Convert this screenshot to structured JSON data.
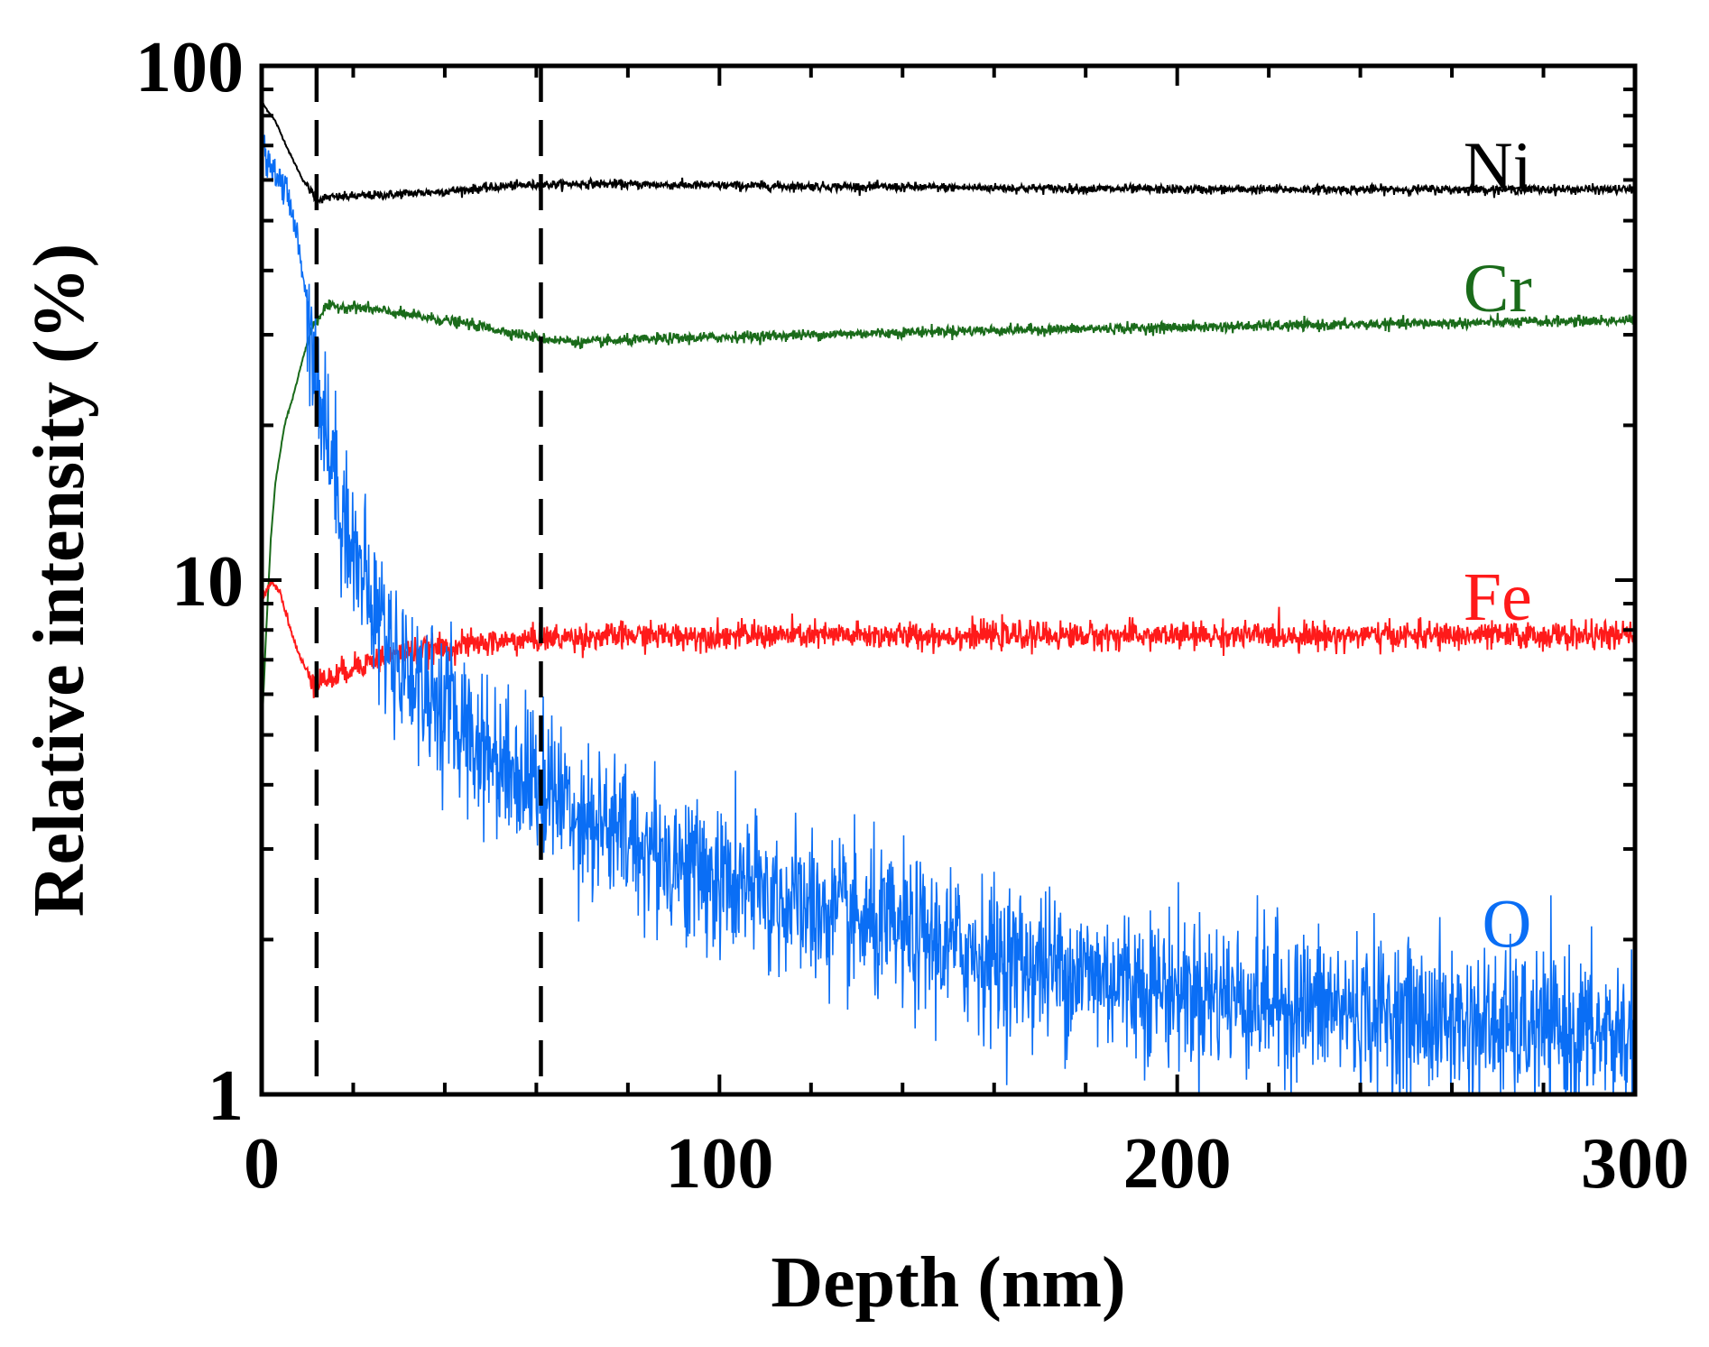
{
  "chart_data": {
    "type": "line",
    "xlabel": "Depth (nm)",
    "ylabel": "Relative intensity (%)",
    "xlim": [
      0,
      300
    ],
    "ylim": [
      1,
      100
    ],
    "yscale": "log",
    "x_ticks": [
      0,
      100,
      200,
      300
    ],
    "x_tick_labels": [
      "0",
      "100",
      "200",
      "300"
    ],
    "x_minor_step": 20,
    "y_ticks": [
      1,
      10,
      100
    ],
    "y_tick_labels": [
      "1",
      "10",
      "100"
    ],
    "vlines": [
      12,
      61
    ],
    "vline_style": "dashed",
    "series": [
      {
        "name": "Ni",
        "color": "#000000",
        "noise": 0.01,
        "points": [
          [
            0,
            85
          ],
          [
            3,
            78
          ],
          [
            6,
            68
          ],
          [
            9,
            60
          ],
          [
            12,
            55
          ],
          [
            15,
            55.5
          ],
          [
            25,
            56
          ],
          [
            40,
            57
          ],
          [
            55,
            58.5
          ],
          [
            70,
            59
          ],
          [
            100,
            58.5
          ],
          [
            150,
            58
          ],
          [
            200,
            57.5
          ],
          [
            250,
            57.5
          ],
          [
            300,
            57.5
          ]
        ]
      },
      {
        "name": "Cr",
        "color": "#1a6b1a",
        "noise": 0.012,
        "points": [
          [
            0,
            5
          ],
          [
            1,
            8
          ],
          [
            2,
            12
          ],
          [
            3,
            15.5
          ],
          [
            5,
            20
          ],
          [
            7,
            23
          ],
          [
            9,
            27
          ],
          [
            11,
            31
          ],
          [
            14,
            34
          ],
          [
            20,
            34
          ],
          [
            30,
            33
          ],
          [
            45,
            31.5
          ],
          [
            61,
            29.5
          ],
          [
            70,
            29
          ],
          [
            90,
            29.5
          ],
          [
            120,
            30
          ],
          [
            150,
            30.5
          ],
          [
            200,
            31
          ],
          [
            250,
            31.5
          ],
          [
            300,
            32
          ]
        ]
      },
      {
        "name": "Fe",
        "color": "#ff1a1a",
        "noise": 0.03,
        "points": [
          [
            0,
            9
          ],
          [
            2,
            10
          ],
          [
            4,
            9.5
          ],
          [
            6,
            8.2
          ],
          [
            8,
            7.2
          ],
          [
            10,
            6.6
          ],
          [
            12,
            6.4
          ],
          [
            15,
            6.4
          ],
          [
            20,
            6.8
          ],
          [
            30,
            7.2
          ],
          [
            45,
            7.5
          ],
          [
            61,
            7.7
          ],
          [
            80,
            7.8
          ],
          [
            150,
            7.8
          ],
          [
            200,
            7.8
          ],
          [
            250,
            7.8
          ],
          [
            300,
            7.8
          ]
        ]
      },
      {
        "name": "O",
        "color": "#0a6ef5",
        "noise": 0.17,
        "points": [
          [
            0,
            70
          ],
          [
            3,
            62
          ],
          [
            5,
            58
          ],
          [
            7,
            50
          ],
          [
            9,
            40
          ],
          [
            11,
            30
          ],
          [
            13,
            22
          ],
          [
            16,
            16
          ],
          [
            20,
            11.5
          ],
          [
            25,
            8.5
          ],
          [
            30,
            7
          ],
          [
            40,
            5.6
          ],
          [
            50,
            4.6
          ],
          [
            61,
            4
          ],
          [
            75,
            3.3
          ],
          [
            100,
            2.6
          ],
          [
            130,
            2.15
          ],
          [
            160,
            1.85
          ],
          [
            200,
            1.6
          ],
          [
            240,
            1.45
          ],
          [
            270,
            1.35
          ],
          [
            300,
            1.3
          ]
        ]
      }
    ],
    "annotations": [
      {
        "text": "Ni",
        "color": "#000000",
        "x": 270,
        "y": 64
      },
      {
        "text": "Cr",
        "color": "#1a6b1a",
        "x": 270,
        "y": 37
      },
      {
        "text": "Fe",
        "color": "#ff1a1a",
        "x": 270,
        "y": 9.3
      },
      {
        "text": "O",
        "color": "#0a6ef5",
        "x": 272,
        "y": 2.15
      }
    ]
  }
}
